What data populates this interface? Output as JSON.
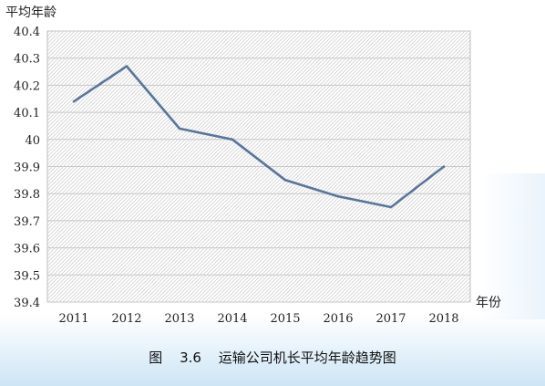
{
  "chart_data": {
    "type": "line",
    "ylabel": "平均年龄",
    "xlabel": "年份",
    "categories": [
      "2011",
      "2012",
      "2013",
      "2014",
      "2015",
      "2016",
      "2017",
      "2018"
    ],
    "series": [
      {
        "values": [
          40.14,
          40.27,
          40.04,
          40.0,
          39.85,
          39.79,
          39.75,
          39.9
        ],
        "color": "#5a7599"
      }
    ],
    "ylim": [
      39.4,
      40.4
    ],
    "yticks": [
      "40.4",
      "40.3",
      "40.2",
      "40.1",
      "40",
      "39.9",
      "39.8",
      "39.7",
      "39.6",
      "39.5",
      "39.4"
    ],
    "grid": true,
    "background": "hatched"
  },
  "caption": "图 3.6    运输公司机长平均年龄趋势图"
}
